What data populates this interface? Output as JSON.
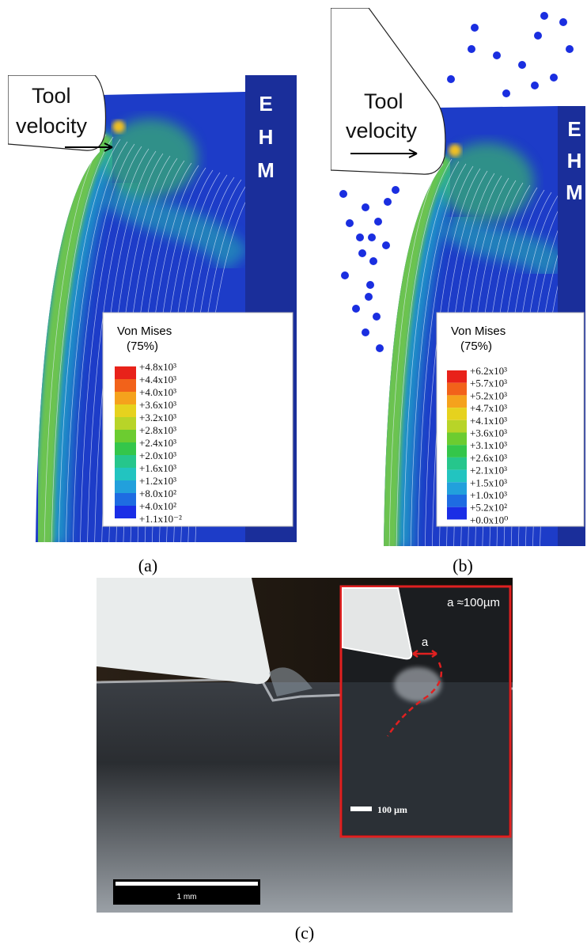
{
  "panels": [
    {
      "caption": "(a)",
      "tool_label": [
        "Tool",
        "velocity"
      ],
      "region_label": [
        "E",
        "H",
        "M"
      ],
      "legend": {
        "title": [
          "Von Mises",
          "(75%)"
        ],
        "labels": [
          "+4.8x10³",
          "+4.4x10³",
          "+4.0x10³",
          "+3.6x10³",
          "+3.2x10³",
          "+2.8x10³",
          "+2.4x10³",
          "+2.0x10³",
          "+1.6x10³",
          "+1.2x10³",
          "+8.0x10²",
          "+4.0x10²",
          "+1.1x10⁻²"
        ]
      }
    },
    {
      "caption": "(b)",
      "tool_label": [
        "Tool",
        "velocity"
      ],
      "region_label": [
        "E",
        "H",
        "M"
      ],
      "legend": {
        "title": [
          "Von Mises",
          "(75%)"
        ],
        "labels": [
          "+6.2x10³",
          "+5.7x10³",
          "+5.2x10³",
          "+4.7x10³",
          "+4.1x10³",
          "+3.6x10³",
          "+3.1x10³",
          "+2.6x10³",
          "+2.1x10³",
          "+1.5x10³",
          "+1.0x10³",
          "+5.2x10²",
          "+0.0x10⁰"
        ]
      }
    }
  ],
  "photo": {
    "caption": "(c)",
    "inset_label": "a ≈100µm",
    "gap_label": "a",
    "inset_scale": "100 µm",
    "scale": "1 mm"
  }
}
